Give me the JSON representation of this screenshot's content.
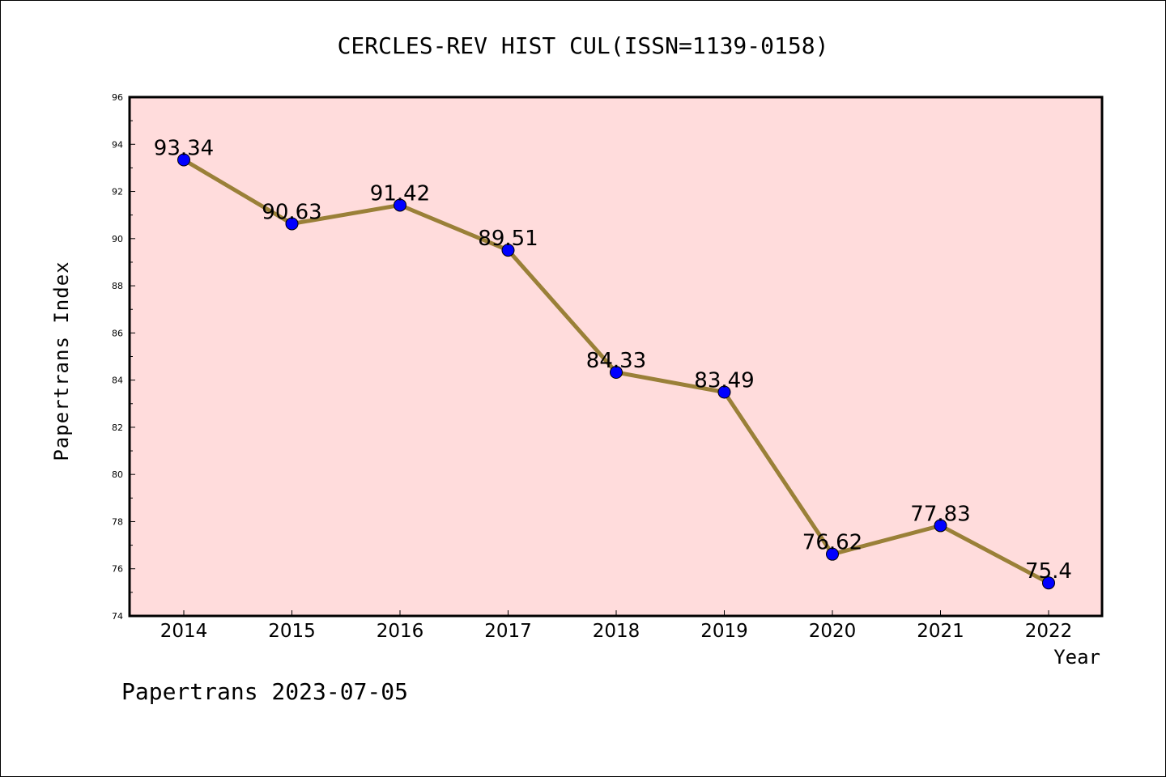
{
  "chart_data": {
    "type": "line",
    "title": "CERCLES-REV HIST CUL(ISSN=1139-0158)",
    "xlabel": "Year",
    "ylabel": "Papertrans Index",
    "categories": [
      "2014",
      "2015",
      "2016",
      "2017",
      "2018",
      "2019",
      "2020",
      "2021",
      "2022"
    ],
    "series": [
      {
        "values": [
          93.34,
          90.63,
          91.42,
          89.51,
          84.33,
          83.49,
          76.62,
          77.83,
          75.4
        ],
        "labels": [
          "93.34",
          "90.63",
          "91.42",
          "89.51",
          "84.33",
          "83.49",
          "76.62",
          "77.83",
          "75.4"
        ]
      }
    ],
    "ylim": [
      74,
      96
    ],
    "yticks": [
      74,
      76,
      78,
      80,
      82,
      84,
      86,
      88,
      90,
      92,
      94,
      96
    ],
    "grid": false,
    "colors": {
      "plot_bg": "#ffdcdc",
      "line": "#9a8038",
      "marker": "#0000ff"
    }
  },
  "footer": "Papertrans 2023-07-05"
}
